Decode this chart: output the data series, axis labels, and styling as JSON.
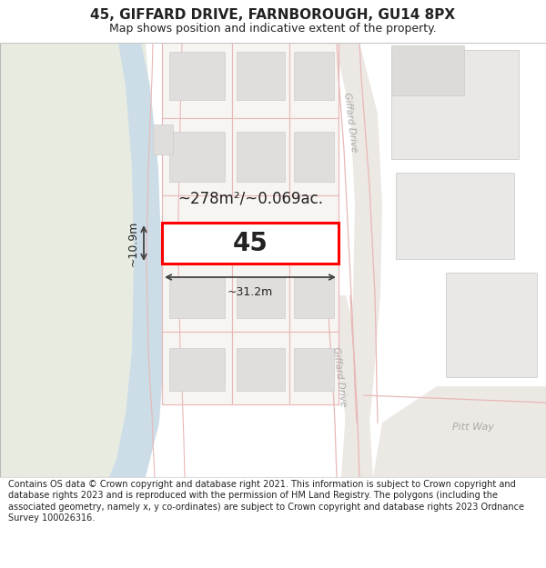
{
  "title": "45, GIFFARD DRIVE, FARNBOROUGH, GU14 8PX",
  "subtitle": "Map shows position and indicative extent of the property.",
  "footer": "Contains OS data © Crown copyright and database right 2021. This information is subject to Crown copyright and database rights 2023 and is reproduced with the permission of HM Land Registry. The polygons (including the associated geometry, namely x, y co-ordinates) are subject to Crown copyright and database rights 2023 Ordnance Survey 100026316.",
  "area_label": "~278m²/~0.069ac.",
  "width_label": "~31.2m",
  "height_label": "~10.9m",
  "property_number": "45",
  "map_bg": "#f7f5f2",
  "parcel_bg": "#f7f5f2",
  "parcel_border": "#e8b8b8",
  "building_fill": "#e0dedd",
  "building_border": "#c8c4c0",
  "highlight_fill": "#ffffff",
  "highlight_border": "#ff0000",
  "green_fill": "#e8ece0",
  "water_fill": "#ccdde8",
  "road_fill": "#f0eeec",
  "road_border": "#e8c0c0",
  "dim_line_color": "#555555",
  "road_label_color": "#aaaaaa",
  "text_color": "#222222",
  "title_fontsize": 11,
  "subtitle_fontsize": 9,
  "footer_fontsize": 7
}
